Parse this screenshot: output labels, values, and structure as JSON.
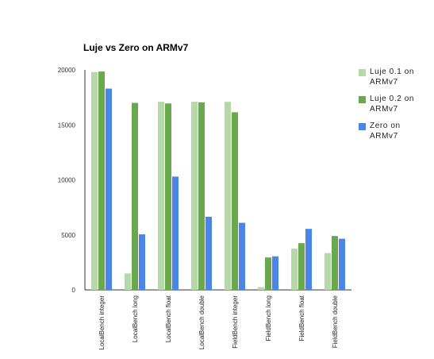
{
  "chart_data": {
    "type": "bar",
    "title": "Luje vs Zero on ARMv7",
    "xlabel": "",
    "ylabel": "",
    "ylim": [
      0,
      20000
    ],
    "yticks": [
      "0",
      "5000",
      "10000",
      "15000",
      "20000"
    ],
    "grid": false,
    "legend_position": "right",
    "categories": [
      "LocalBench integer",
      "LocalBench long",
      "LocalBench float",
      "LocalBench double",
      "FieldBench integer",
      "FieldBench long",
      "FieldBench float",
      "FieldBench double"
    ],
    "series": [
      {
        "name": "Luje 0.1 on ARMv7",
        "color": "#b6d7a8",
        "values": [
          19800,
          1500,
          17100,
          17100,
          17100,
          250,
          3750,
          3350
        ]
      },
      {
        "name": "Luje 0.2 on ARMv7",
        "color": "#6aa84f",
        "values": [
          19850,
          17000,
          16950,
          17050,
          16150,
          2950,
          4250,
          4900
        ]
      },
      {
        "name": "Zero on ARMv7",
        "color": "#4a86e8",
        "values": [
          18300,
          5050,
          10300,
          6650,
          6100,
          3050,
          5550,
          4650
        ]
      }
    ]
  }
}
